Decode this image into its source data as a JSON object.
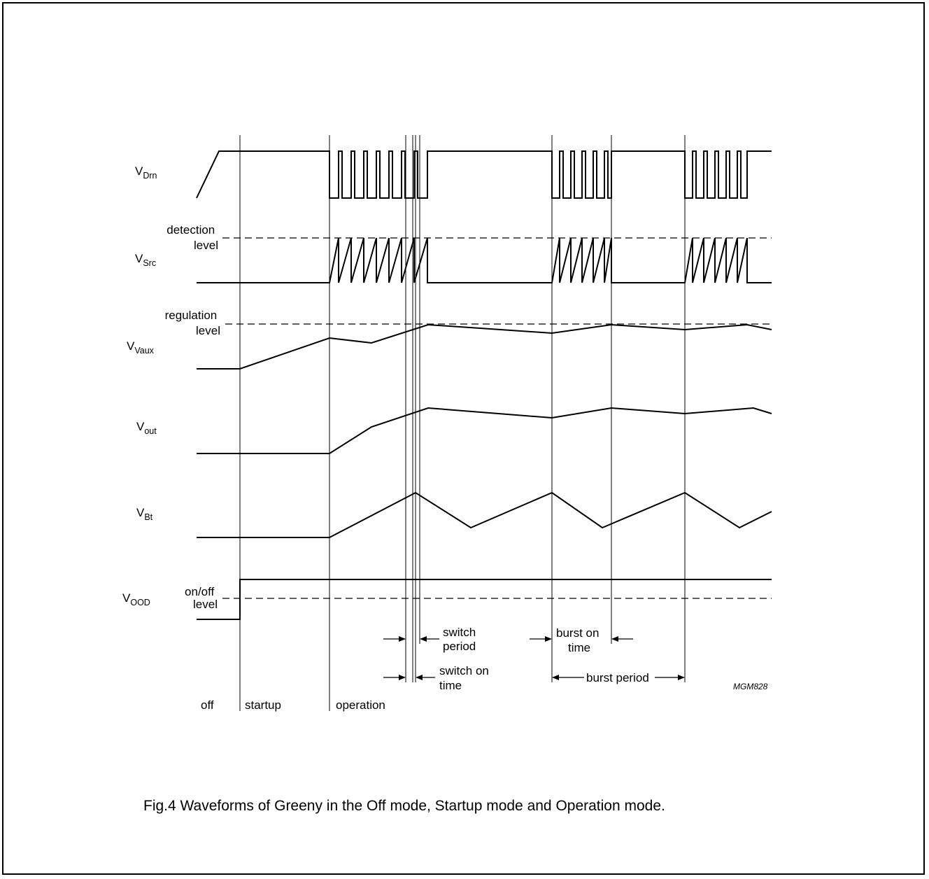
{
  "signals": {
    "drn": {
      "main": "V",
      "sub": "Drn"
    },
    "src": {
      "main": "V",
      "sub": "Src"
    },
    "vaux": {
      "main": "V",
      "sub": "Vaux"
    },
    "out": {
      "main": "V",
      "sub": "out"
    },
    "bt": {
      "main": "V",
      "sub": "Bt"
    },
    "ood": {
      "main": "V",
      "sub": "OOD"
    }
  },
  "levels": {
    "detection": [
      "detection",
      "level"
    ],
    "regulation": [
      "regulation",
      "level"
    ],
    "onoff": [
      "on/off",
      "level"
    ]
  },
  "annotations": {
    "switch_period": [
      "switch",
      "period"
    ],
    "switch_on_time": [
      "switch on",
      "time"
    ],
    "burst_on_time": [
      "burst on",
      "time"
    ],
    "burst_period": "burst period"
  },
  "phases": {
    "off": "off",
    "startup": "startup",
    "operation": "operation"
  },
  "code": "MGM828",
  "caption": "Fig.4  Waveforms of Greeny in the Off mode, Startup mode and Operation mode."
}
